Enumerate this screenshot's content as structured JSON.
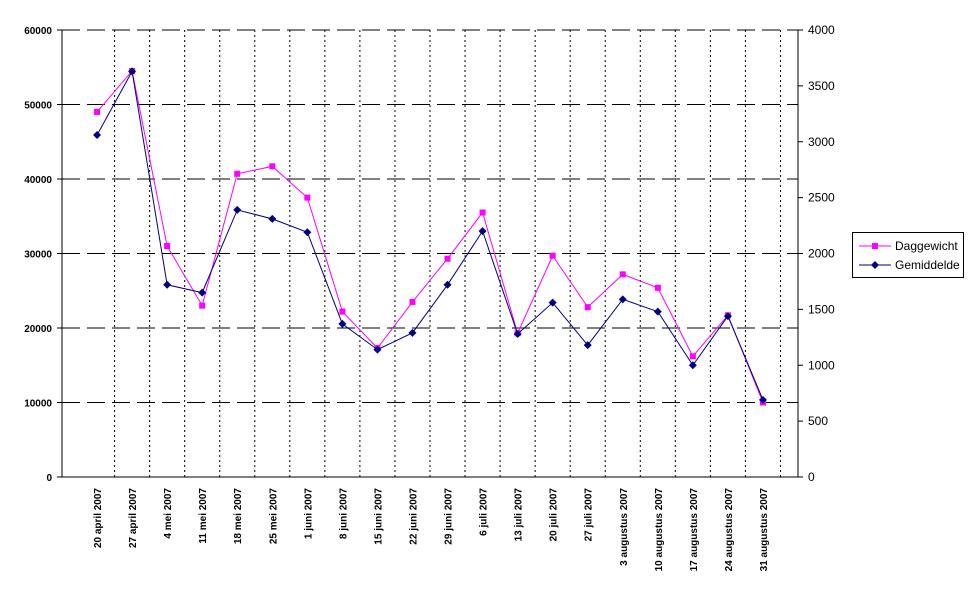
{
  "chart_data": {
    "type": "line",
    "categories": [
      "20 april 2007",
      "27 april 2007",
      "4 mei 2007",
      "11 mei 2007",
      "18 mei 2007",
      "25 mei 2007",
      "1 juni 2007",
      "8 juni 2007",
      "15 juni 2007",
      "22 juni 2007",
      "29 juni 2007",
      "6 juli 2007",
      "13 juli 2007",
      "20 juli 2007",
      "27 juli 2007",
      "3 augustus 2007",
      "10 augustus 2007",
      "17 augustus 2007",
      "24 augustus 2007",
      "31 augustus 2007"
    ],
    "series": [
      {
        "name": "Daggewicht",
        "axis": "left",
        "color": "#ff00ff",
        "marker": "square",
        "values": [
          49000,
          54500,
          31000,
          23000,
          40700,
          41700,
          37500,
          22200,
          17300,
          23500,
          29300,
          35500,
          19300,
          29700,
          22800,
          27200,
          25400,
          16200,
          21700,
          10000
        ]
      },
      {
        "name": "Gemiddelde",
        "axis": "right",
        "color": "#000080",
        "marker": "diamond",
        "values": [
          3060,
          3630,
          1720,
          1650,
          2390,
          2310,
          2190,
          1370,
          1140,
          1290,
          1720,
          2200,
          1280,
          1560,
          1180,
          1590,
          1480,
          1000,
          1440,
          690
        ]
      }
    ],
    "y_left": {
      "min": 0,
      "max": 60000,
      "ticks": [
        "0",
        "10000",
        "20000",
        "30000",
        "40000",
        "50000",
        "60000"
      ]
    },
    "y_right": {
      "min": 0,
      "max": 4000,
      "ticks": [
        "0",
        "500",
        "1000",
        "1500",
        "2000",
        "2500",
        "3000",
        "3500",
        "4000"
      ]
    },
    "title": "",
    "xlabel": "",
    "ylabel": "",
    "grid": {
      "horizontal": "dashed",
      "vertical": "dotted"
    },
    "legend": {
      "position": "right",
      "entries": [
        "Daggewicht",
        "Gemiddelde"
      ]
    }
  }
}
